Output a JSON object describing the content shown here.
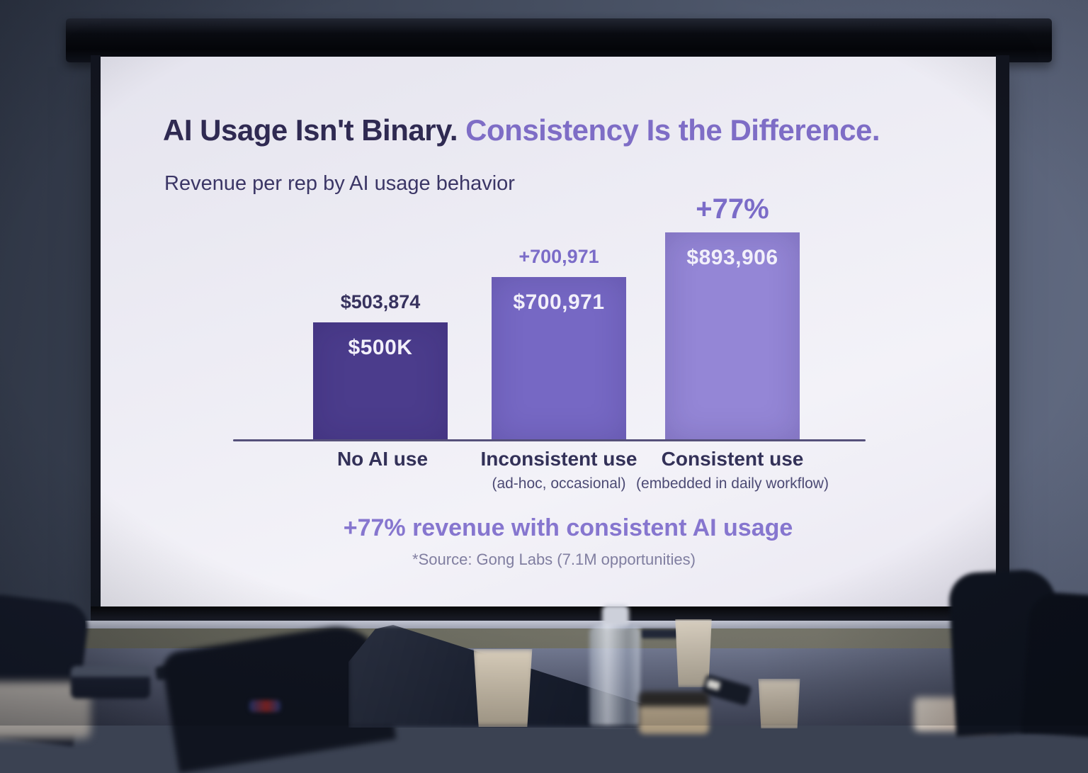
{
  "slide": {
    "title_part1": "AI Usage Isn't Binary. ",
    "title_part2": "Consistency Is the Difference.",
    "subtitle": "Revenue per rep by AI usage behavior",
    "footer": "+77% revenue with consistent AI usage",
    "source": "*Source: Gong Labs (7.1M opportunities)"
  },
  "chart_data": {
    "type": "bar",
    "title": "Revenue per rep by AI usage behavior",
    "categories": [
      "No AI use",
      "Inconsistent use",
      "Consistent use"
    ],
    "category_sublabels": [
      "",
      "(ad-hoc, occasional)",
      "(embedded in daily workflow)"
    ],
    "values": [
      503874,
      700971,
      893906
    ],
    "above_bar_labels": [
      "$503,874",
      "+700,971",
      "+77%"
    ],
    "in_bar_labels": [
      "$500K",
      "$700,971",
      "$893,906"
    ],
    "bar_colors": [
      "#4b3c8c",
      "#7668c4",
      "#9486d6"
    ],
    "above_label_colors": [
      "#37325e",
      "#7b6cc8",
      "#7b6cc8"
    ],
    "annotation": "+77% revenue with consistent AI usage",
    "source": "*Source: Gong Labs (7.1M opportunities)",
    "ylim": [
      0,
      950000
    ],
    "grid": false,
    "legend": null
  },
  "colors": {
    "title_navy": "#2f2a52",
    "title_purple": "#7e6dc6",
    "footer_purple": "#8676cf",
    "source_gray": "#807ea0",
    "axis": "#55507a",
    "in_bar_text": "#f2f0fa"
  }
}
